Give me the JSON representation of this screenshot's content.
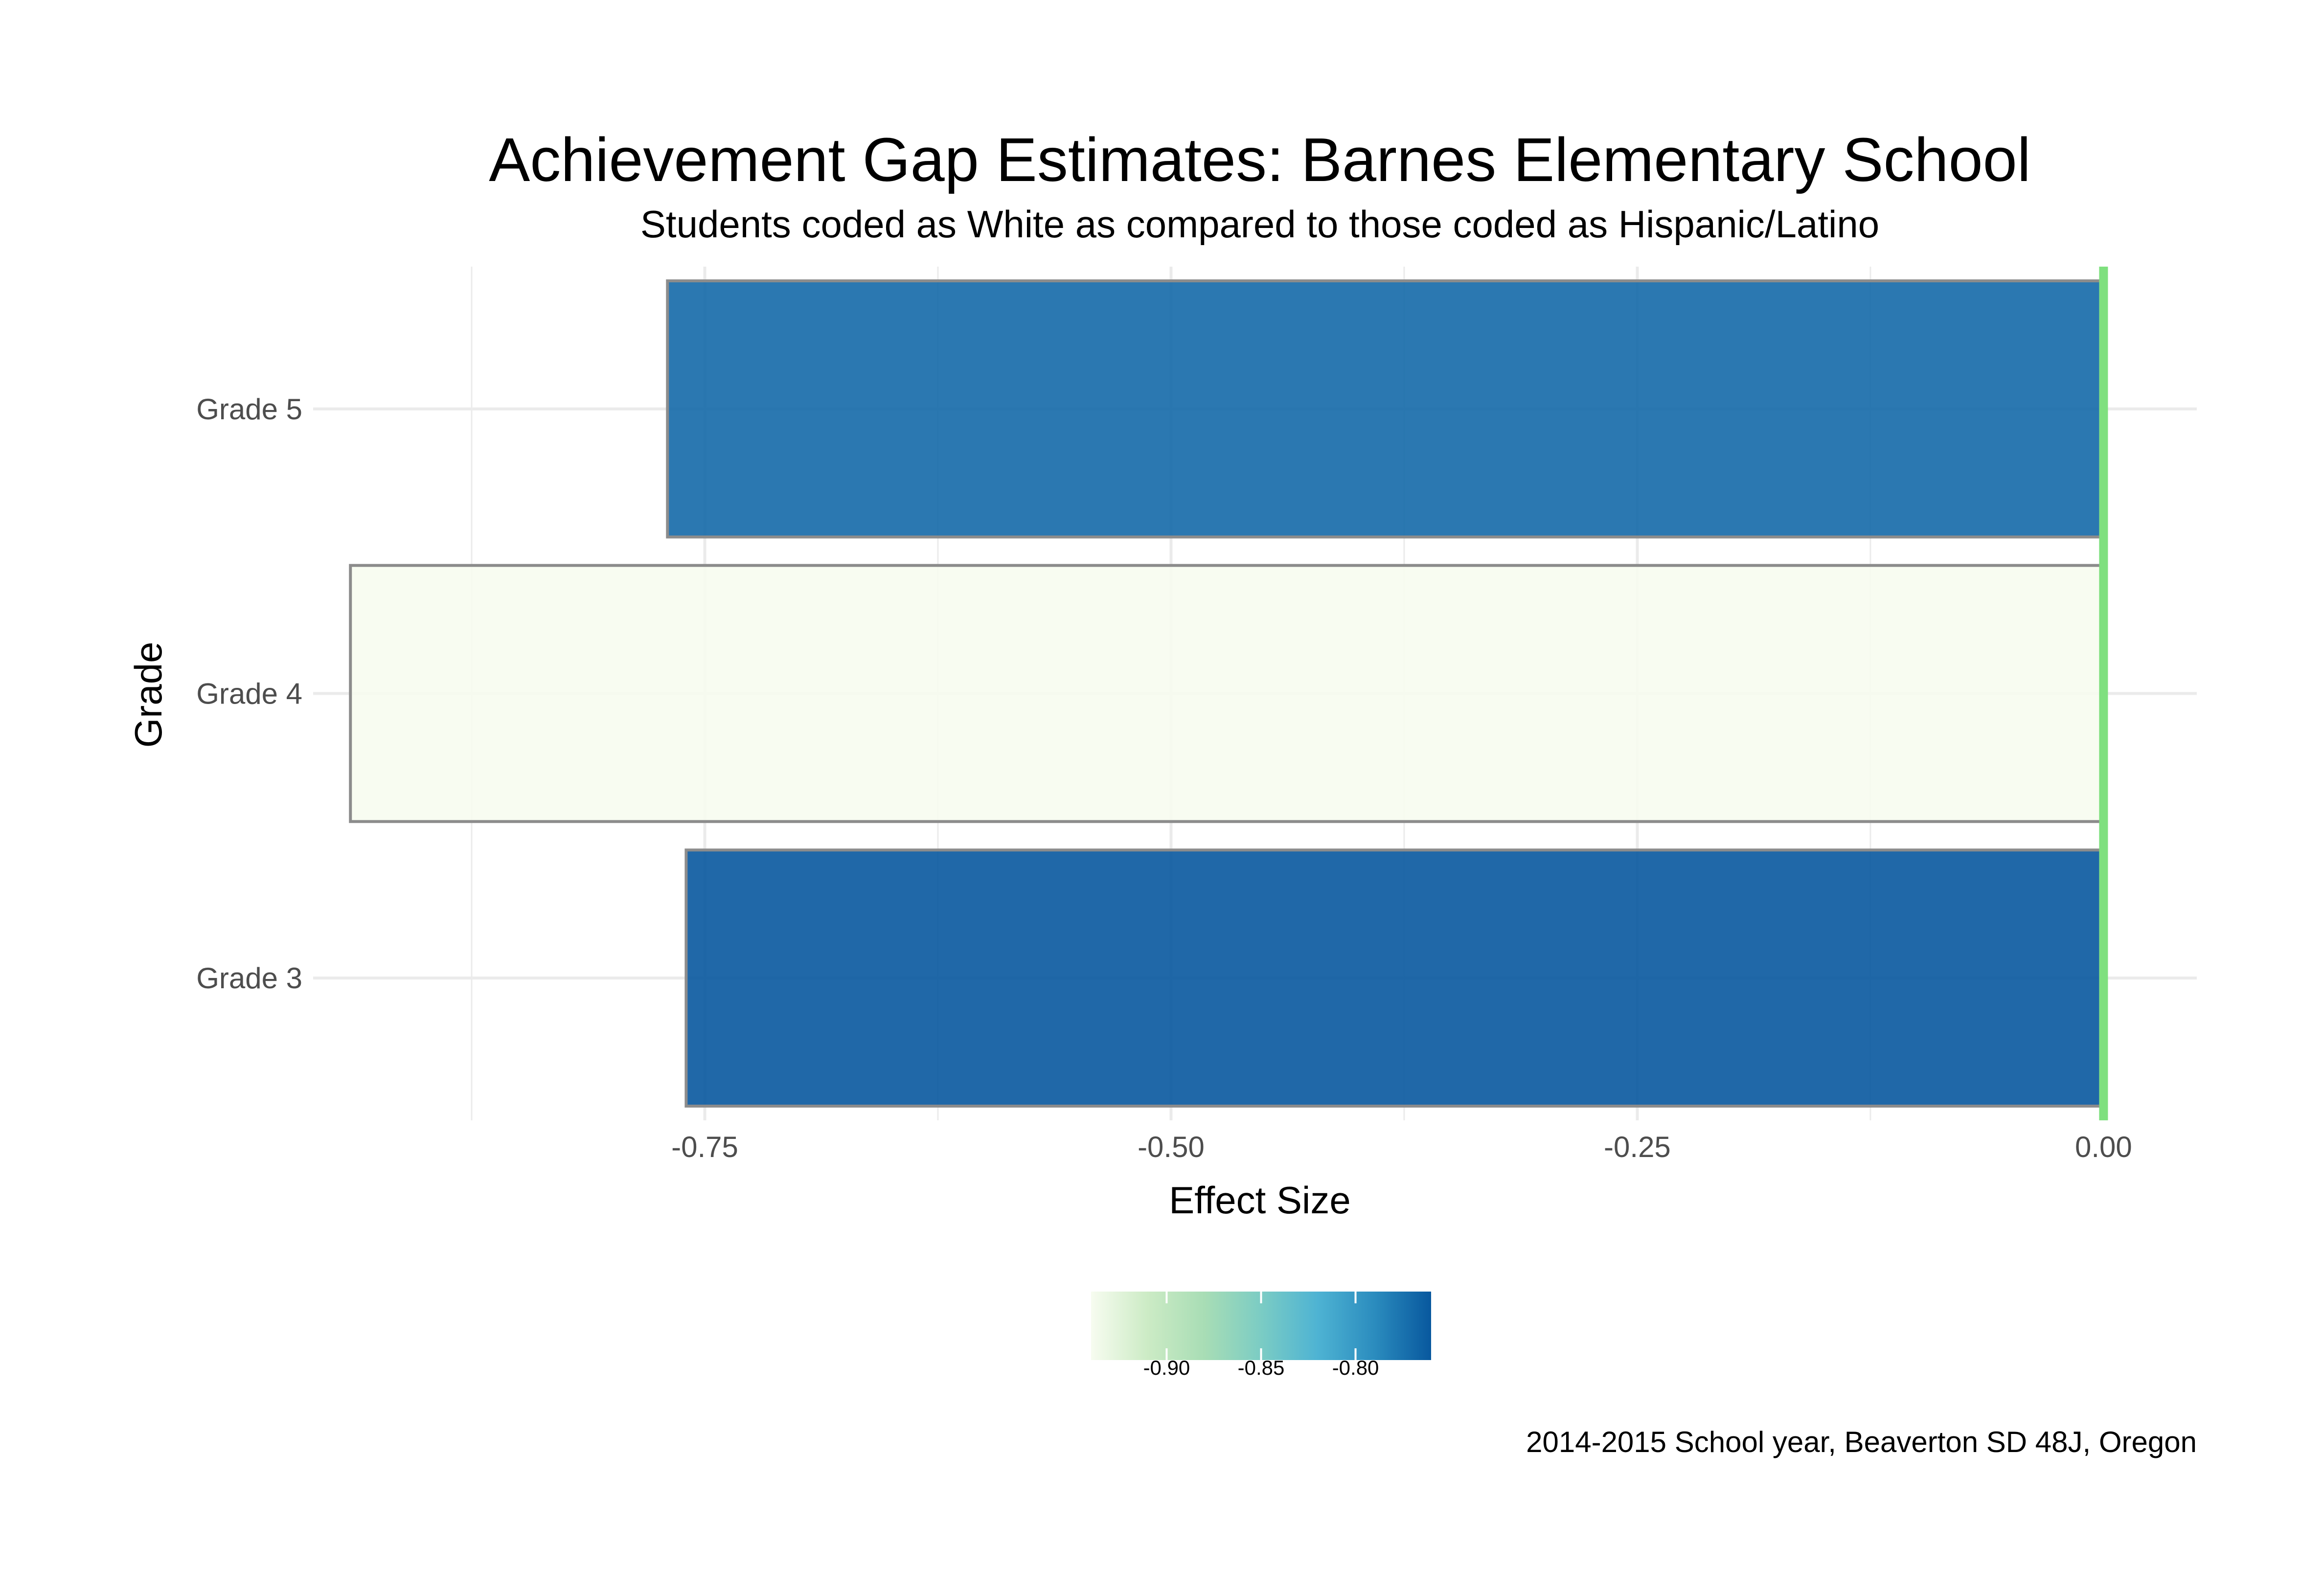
{
  "chart_data": {
    "type": "bar",
    "orientation": "horizontal",
    "title": "Achievement Gap Estimates: Barnes Elementary School",
    "subtitle": "Students coded as White as compared to those coded as Hispanic/Latino",
    "xlabel": "Effect Size",
    "ylabel": "Grade",
    "categories": [
      "Grade 3",
      "Grade 4",
      "Grade 5"
    ],
    "values": [
      -0.76,
      -0.94,
      -0.77
    ],
    "xlim": [
      -0.96,
      0.05
    ],
    "x_ticks": [
      -0.75,
      -0.5,
      -0.25,
      0.0
    ],
    "x_tick_labels": [
      "-0.75",
      "-0.50",
      "-0.25",
      "0.00"
    ],
    "reference_line": {
      "x": 0.0,
      "color": "#7fe07f"
    },
    "grid": true,
    "legend": {
      "position": "bottom",
      "type": "colorbar",
      "range": [
        -0.94,
        -0.76
      ],
      "ticks": [
        -0.9,
        -0.85,
        -0.8
      ],
      "tick_labels": [
        "-0.90",
        "-0.85",
        "-0.80"
      ],
      "colors": [
        "#f7fcf0",
        "#ccebc5",
        "#a8ddb5",
        "#7bccc4",
        "#4eb3d3",
        "#2b8cbe",
        "#08589e"
      ]
    },
    "caption": "2014-2015 School year, Beaverton SD 48J, Oregon"
  }
}
